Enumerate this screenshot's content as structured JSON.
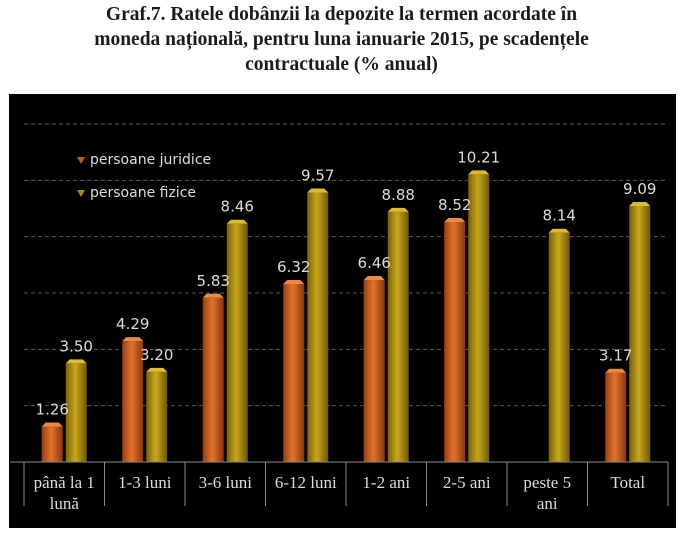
{
  "title_lines": [
    "Graf.7. Ratele dobânzii la depozite la termen acordate în",
    "moneda națională, pentru luna ianuarie 2015, pe scadențele",
    "contractuale (% anual)"
  ],
  "colors": {
    "background": "#000000",
    "gridline": "#5a5a5a",
    "axis": "#8a8a8a",
    "text": "#dcdcdc",
    "persoane_juridice": "#c85a1c",
    "persoane_fizice": "#a88a10"
  },
  "chart_data": {
    "type": "bar",
    "categories": [
      [
        "până la 1",
        "lună"
      ],
      [
        "1-3 luni"
      ],
      [
        "3-6 luni"
      ],
      [
        "6-12 luni"
      ],
      [
        "1-2 ani"
      ],
      [
        "2-5 ani"
      ],
      [
        "peste 5",
        "ani"
      ],
      [
        "Total"
      ]
    ],
    "series": [
      {
        "name": "persoane juridice",
        "values": [
          1.26,
          4.29,
          5.83,
          6.32,
          6.46,
          8.52,
          null,
          3.17
        ],
        "labels": [
          "1.26",
          "4.29",
          "5.83",
          "6.32",
          "6.46",
          "8.52",
          "",
          "3.17"
        ]
      },
      {
        "name": "persoane fizice",
        "values": [
          3.5,
          3.2,
          8.46,
          9.57,
          8.88,
          10.21,
          8.14,
          9.09
        ],
        "labels": [
          "3.50",
          "3.20",
          "8.46",
          "9.57",
          "8.88",
          "10.21",
          "8.14",
          "9.09"
        ]
      }
    ],
    "ylim": [
      0,
      12
    ],
    "grid": true,
    "legend": "top-left"
  }
}
